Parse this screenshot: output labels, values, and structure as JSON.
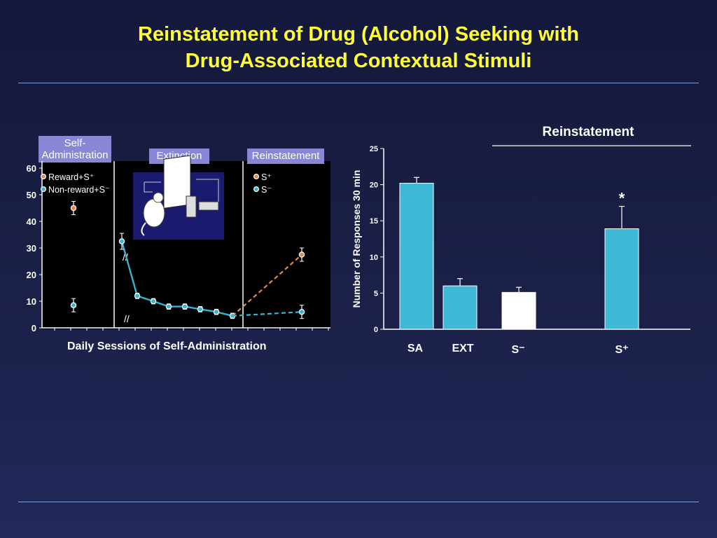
{
  "slide": {
    "title_line1": "Reinstatement of Drug (Alcohol) Seeking  with",
    "title_line2": "Drug-Associated Contextual Stimuli",
    "caption": "Daily Sessions of Self-Administration"
  },
  "colors": {
    "title": "#ffff33",
    "reward": "#e08a4a",
    "nonreward": "#35b4d4",
    "bar": "#3fb8d6",
    "bar_white": "#ffffff",
    "phase_header": "#8a86d6"
  },
  "chart_data": [
    {
      "type": "line",
      "phases": [
        "Self-\nAdministration",
        "Extinction",
        "Reinstatement"
      ],
      "legend_left": [
        "Reward+S⁺",
        "Non-reward+S⁻"
      ],
      "legend_right": [
        "S⁺",
        "S⁻"
      ],
      "ylim": [
        0,
        60
      ],
      "yticks": [
        "0",
        "10",
        "20",
        "30",
        "40",
        "50",
        "60"
      ],
      "series": [
        {
          "name": "Reward+S⁺",
          "points": [
            {
              "phase": "Self-Administration",
              "session": 1,
              "y": 45,
              "err": 2.5
            },
            {
              "phase": "Reinstatement",
              "session": 1,
              "y": 27.5,
              "err": 2.5
            }
          ]
        },
        {
          "name": "Non-reward+S⁻",
          "points": [
            {
              "phase": "Self-Administration",
              "session": 1,
              "y": 8.5,
              "err": 2.5
            },
            {
              "phase": "Reinstatement",
              "session": 1,
              "y": 6,
              "err": 2.5
            }
          ]
        },
        {
          "name": "Extinction",
          "values": [
            32.5,
            12,
            10,
            8,
            8,
            7,
            6,
            4.5
          ],
          "err": [
            3,
            1,
            1,
            1,
            1,
            1,
            1,
            1
          ]
        }
      ]
    },
    {
      "type": "bar",
      "title": "Reinstatement",
      "ylabel": "Number of Responses 30 min",
      "ylim": [
        0,
        25
      ],
      "yticks": [
        "0",
        "5",
        "10",
        "15",
        "20",
        "25"
      ],
      "categories": [
        "SA",
        "EXT",
        "S⁻",
        "S⁺"
      ],
      "values": [
        20.2,
        6,
        5.1,
        13.9
      ],
      "errors": [
        0.8,
        1,
        0.7,
        3.1
      ],
      "significance": [
        "",
        "",
        "",
        "*"
      ]
    }
  ]
}
